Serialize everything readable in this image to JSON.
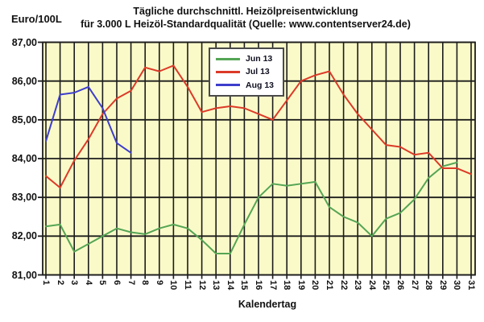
{
  "header": {
    "y_unit_label": "Euro/100L",
    "title_line1": "Tägliche durchschnittl. Heizölpreisentwicklung",
    "title_line2": "für 3.000 L Heizöl-Standardqualität (Quelle: www.contentserver24.de)"
  },
  "chart_data": {
    "type": "line",
    "title": "Tägliche durchschnittl. Heizölpreisentwicklung für 3.000 L Heizöl-Standardqualität (Quelle: www.contentserver24.de)",
    "xlabel": "Kalendertag",
    "ylabel": "Euro/100L",
    "x": [
      1,
      2,
      3,
      4,
      5,
      6,
      7,
      8,
      9,
      10,
      11,
      12,
      13,
      14,
      15,
      16,
      17,
      18,
      19,
      20,
      21,
      22,
      23,
      24,
      25,
      26,
      27,
      28,
      29,
      30,
      31
    ],
    "ylim": [
      81,
      87
    ],
    "ytick_step": 1,
    "ytick_labels": [
      "87,00",
      "86,00",
      "85,00",
      "84,00",
      "83,00",
      "82,00",
      "81,00"
    ],
    "grid": true,
    "legend_position": "inside-top-center",
    "plot_background": "#fafac8",
    "grid_color": "#1c1c1c",
    "series": [
      {
        "name": "Jun 13",
        "color": "#55a555",
        "values": [
          82.25,
          82.3,
          81.6,
          81.8,
          82.0,
          82.2,
          82.1,
          82.05,
          82.2,
          82.3,
          82.2,
          81.9,
          81.55,
          81.55,
          82.3,
          83.0,
          83.35,
          83.3,
          83.35,
          83.4,
          82.75,
          82.5,
          82.35,
          82.0,
          82.45,
          82.6,
          82.95,
          83.5,
          83.8,
          83.9
        ]
      },
      {
        "name": "Jul 13",
        "color": "#dc3a28",
        "values": [
          83.55,
          83.25,
          83.95,
          84.5,
          85.15,
          85.55,
          85.75,
          86.35,
          86.25,
          86.4,
          85.85,
          85.2,
          85.3,
          85.35,
          85.3,
          85.15,
          85.0,
          85.5,
          86.0,
          86.15,
          86.25,
          85.65,
          85.15,
          84.75,
          84.35,
          84.3,
          84.1,
          84.15,
          83.75,
          83.75,
          83.6
        ]
      },
      {
        "name": "Aug 13",
        "color": "#3d3dcc",
        "values": [
          84.45,
          85.65,
          85.7,
          85.85,
          85.3,
          84.4,
          84.15
        ]
      }
    ]
  }
}
